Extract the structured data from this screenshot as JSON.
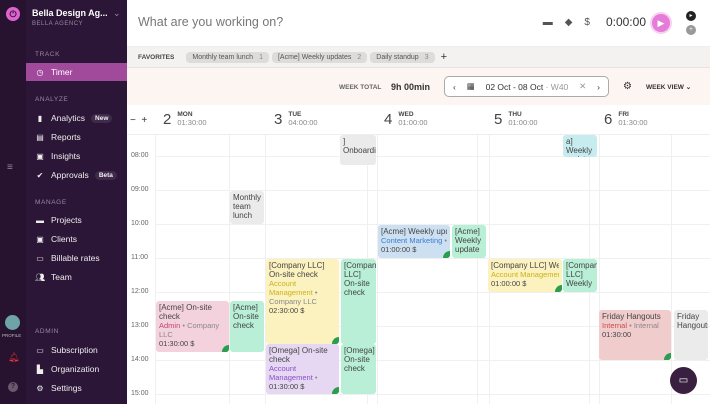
{
  "sidebar": {
    "org_name": "Bella Design Ag...",
    "org_sub": "BELLA AGENCY",
    "sections": {
      "track": "TRACK",
      "analyze": "ANALYZE",
      "manage": "MANAGE",
      "admin": "ADMIN"
    },
    "items": [
      {
        "label": "Timer",
        "icon": "clock-icon"
      },
      {
        "label": "Analytics",
        "badge": "New",
        "icon": "bar-chart-icon"
      },
      {
        "label": "Reports",
        "icon": "report-icon"
      },
      {
        "label": "Insights",
        "icon": "insights-icon"
      },
      {
        "label": "Approvals",
        "badge": "Beta",
        "icon": "check-circle-icon"
      },
      {
        "label": "Projects",
        "icon": "folder-icon"
      },
      {
        "label": "Clients",
        "icon": "client-icon"
      },
      {
        "label": "Billable rates",
        "icon": "money-icon"
      },
      {
        "label": "Team",
        "icon": "team-icon"
      },
      {
        "label": "Subscription",
        "icon": "card-icon"
      },
      {
        "label": "Organization",
        "icon": "building-icon"
      },
      {
        "label": "Settings",
        "icon": "gear-icon"
      }
    ],
    "profile_label": "PROFILE"
  },
  "topbar": {
    "placeholder": "What are you working on?",
    "timer": "0:00:00"
  },
  "favorites": {
    "label": "FAVORITES",
    "items": [
      {
        "label": "Monthly team lunch",
        "n": "1"
      },
      {
        "label": "[Acme] Weekly updates",
        "n": "2"
      },
      {
        "label": "Daily standup",
        "n": "3"
      }
    ]
  },
  "week": {
    "total_label": "WEEK TOTAL",
    "total": "9h 00min",
    "range": "02 Oct - 08 Oct",
    "week": "· W40",
    "view": "WEEK VIEW"
  },
  "days": [
    {
      "num": "2",
      "name": "MON",
      "total": "01:30:00"
    },
    {
      "num": "3",
      "name": "TUE",
      "total": "04:00:00"
    },
    {
      "num": "4",
      "name": "WED",
      "total": "01:00:00"
    },
    {
      "num": "5",
      "name": "THU",
      "total": "01:00:00"
    },
    {
      "num": "6",
      "name": "FRI",
      "total": "01:30:00"
    }
  ],
  "hours": [
    "08:00",
    "09:00",
    "10:00",
    "11:00",
    "12:00",
    "13:00",
    "14:00",
    "15:00"
  ],
  "events": [
    {
      "title": "] Onboarding",
      "color": "gray"
    },
    {
      "title": "Monthly team lunch",
      "color": "gray"
    },
    {
      "title": "[Acme] Weekly updates",
      "project": "Content Marketing",
      "client": "•",
      "duration": "01:00:00 $",
      "color": "blue"
    },
    {
      "title": "[Acme] Weekly update",
      "color": "green"
    },
    {
      "title": "[Company LLC] Weekly updates",
      "project": "Account Management",
      "duration": "01:00:00 $",
      "color": "yellow"
    },
    {
      "title": "[Company LLC] Weekly",
      "color": "green"
    },
    {
      "title": "a] Weekly update",
      "color": "teal"
    },
    {
      "title": "[Company LLC] On-site check",
      "project": "Account Management",
      "client": "• Company LLC",
      "duration": "02:30:00 $",
      "color": "yellow"
    },
    {
      "title": "[Company LLC] On-site check",
      "color": "green"
    },
    {
      "title": "[Acme] On-site check",
      "project": "Admin",
      "client": "• Company LLC",
      "duration": "01:30:00 $",
      "color": "pink"
    },
    {
      "title": "[Acme] On-site check",
      "color": "green"
    },
    {
      "title": "[Omega] On-site check",
      "project": "Account Management",
      "client": "•",
      "duration": "01:30:00 $",
      "color": "purple"
    },
    {
      "title": "[Omega] On-site check",
      "color": "green"
    },
    {
      "title": "Friday Hangouts",
      "project": "Internal",
      "client": "• Internal",
      "duration": "01:30:00",
      "color": "red"
    },
    {
      "title": "Friday Hangouts",
      "color": "gray"
    }
  ]
}
